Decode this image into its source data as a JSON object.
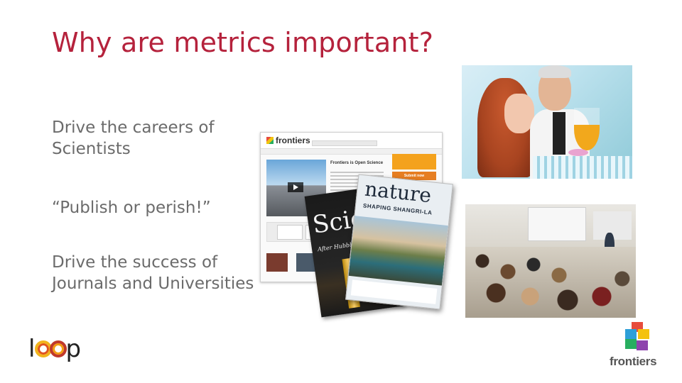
{
  "slide": {
    "title": "Why are metrics important?",
    "bullets": [
      "Drive the careers of\nScientists",
      "“Publish or perish!”",
      "Drive the success of\nJournals and Universities"
    ]
  },
  "website": {
    "logo_text": "frontiers",
    "headline": "Frontiers is Open Science",
    "sidebar_button": "Submit now"
  },
  "magazines": {
    "science_name": "Scie",
    "science_sub": "After Hubble",
    "nature_name": "nature",
    "nature_headline": "SHAPING SHANGRI-LA"
  },
  "logos": {
    "loop_left": "l",
    "loop_right": "p",
    "frontiers": "frontiers"
  },
  "colors": {
    "title": "#b5223c",
    "body_text": "#6b6b6b"
  }
}
